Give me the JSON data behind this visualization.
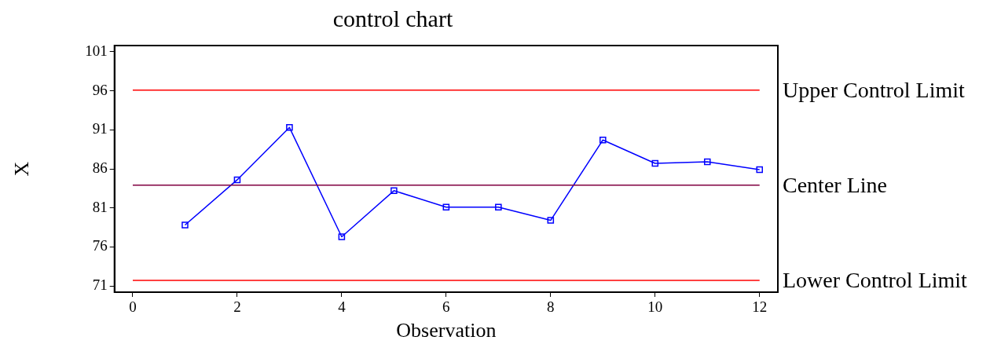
{
  "chart_data": {
    "type": "line",
    "title": "control chart",
    "xlabel": "Observation",
    "ylabel": "X",
    "x": [
      1,
      2,
      3,
      4,
      5,
      6,
      7,
      8,
      9,
      10,
      11,
      12
    ],
    "series": [
      {
        "color": "#0000ff",
        "values": [
          78.8,
          84.6,
          91.3,
          77.3,
          83.2,
          81.1,
          81.1,
          79.4,
          89.7,
          86.7,
          86.9,
          85.9
        ]
      }
    ],
    "xlim": [
      -0.35,
      12.35
    ],
    "xticks": [
      0,
      2,
      4,
      6,
      8,
      10,
      12
    ],
    "ylim": [
      70.2,
      101.8
    ],
    "yticks": [
      71,
      76,
      81,
      86,
      91,
      96,
      101
    ],
    "ref_lines": [
      {
        "axis": "y",
        "value": 96.1,
        "label": "Upper Control Limit",
        "color": "#ff0000"
      },
      {
        "axis": "y",
        "value": 83.9,
        "label": "Center Line",
        "color": "#800040"
      },
      {
        "axis": "y",
        "value": 71.7,
        "label": "Lower Control Limit",
        "color": "#ff0000"
      }
    ],
    "marker": "square",
    "line_style": "solid",
    "grid": false,
    "legend": false
  }
}
